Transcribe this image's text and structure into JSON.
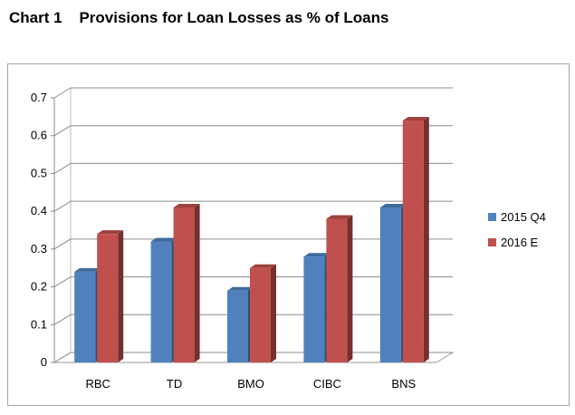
{
  "title": "Chart 1    Provisions for Loan Losses as % of Loans",
  "chart_data": {
    "type": "bar",
    "categories": [
      "RBC",
      "TD",
      "BMO",
      "CIBC",
      "BNS"
    ],
    "series": [
      {
        "name": "2015 Q4",
        "values": [
          0.24,
          0.32,
          0.19,
          0.28,
          0.41
        ],
        "color": "#4f81bd"
      },
      {
        "name": "2016 E",
        "values": [
          0.34,
          0.41,
          0.25,
          0.38,
          0.64
        ],
        "color": "#c0504d"
      }
    ],
    "y_ticks": [
      "0",
      "0.1",
      "0.2",
      "0.3",
      "0.4",
      "0.5",
      "0.6",
      "0.7"
    ],
    "ylim": [
      0,
      0.7
    ],
    "grid": true,
    "legend_position": "right",
    "style": "3d-clustered-column"
  }
}
